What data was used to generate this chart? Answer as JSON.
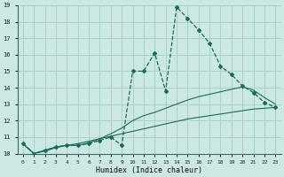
{
  "xlabel": "Humidex (Indice chaleur)",
  "background_color": "#cce8e5",
  "grid_color": "#aacfcc",
  "line_color": "#1a6b5a",
  "xlim": [
    -0.5,
    23.5
  ],
  "ylim": [
    10,
    19
  ],
  "xticks": [
    0,
    1,
    2,
    3,
    4,
    5,
    6,
    7,
    8,
    9,
    10,
    11,
    12,
    13,
    14,
    15,
    16,
    17,
    18,
    19,
    20,
    21,
    22,
    23
  ],
  "yticks": [
    10,
    11,
    12,
    13,
    14,
    15,
    16,
    17,
    18,
    19
  ],
  "x_data": [
    0,
    1,
    2,
    3,
    4,
    5,
    6,
    7,
    8,
    9,
    10,
    11,
    12,
    13,
    14,
    15,
    16,
    17,
    18,
    19,
    20,
    21,
    22,
    23
  ],
  "y_main": [
    10.6,
    10.0,
    10.2,
    10.4,
    10.5,
    10.5,
    10.6,
    10.8,
    11.0,
    10.5,
    15.0,
    15.0,
    16.1,
    13.8,
    18.9,
    18.2,
    17.5,
    16.7,
    15.3,
    14.8,
    14.1,
    13.7,
    13.1,
    12.8
  ],
  "y_smooth1": [
    10.6,
    10.0,
    10.2,
    10.4,
    10.5,
    10.5,
    10.65,
    10.9,
    11.2,
    11.55,
    12.0,
    12.3,
    12.5,
    12.75,
    13.0,
    13.25,
    13.45,
    13.6,
    13.75,
    13.9,
    14.05,
    13.85,
    13.4,
    13.0
  ],
  "y_smooth2": [
    10.6,
    10.0,
    10.15,
    10.35,
    10.5,
    10.6,
    10.75,
    10.9,
    11.05,
    11.2,
    11.35,
    11.5,
    11.65,
    11.8,
    11.95,
    12.1,
    12.2,
    12.3,
    12.4,
    12.5,
    12.6,
    12.7,
    12.75,
    12.8
  ]
}
